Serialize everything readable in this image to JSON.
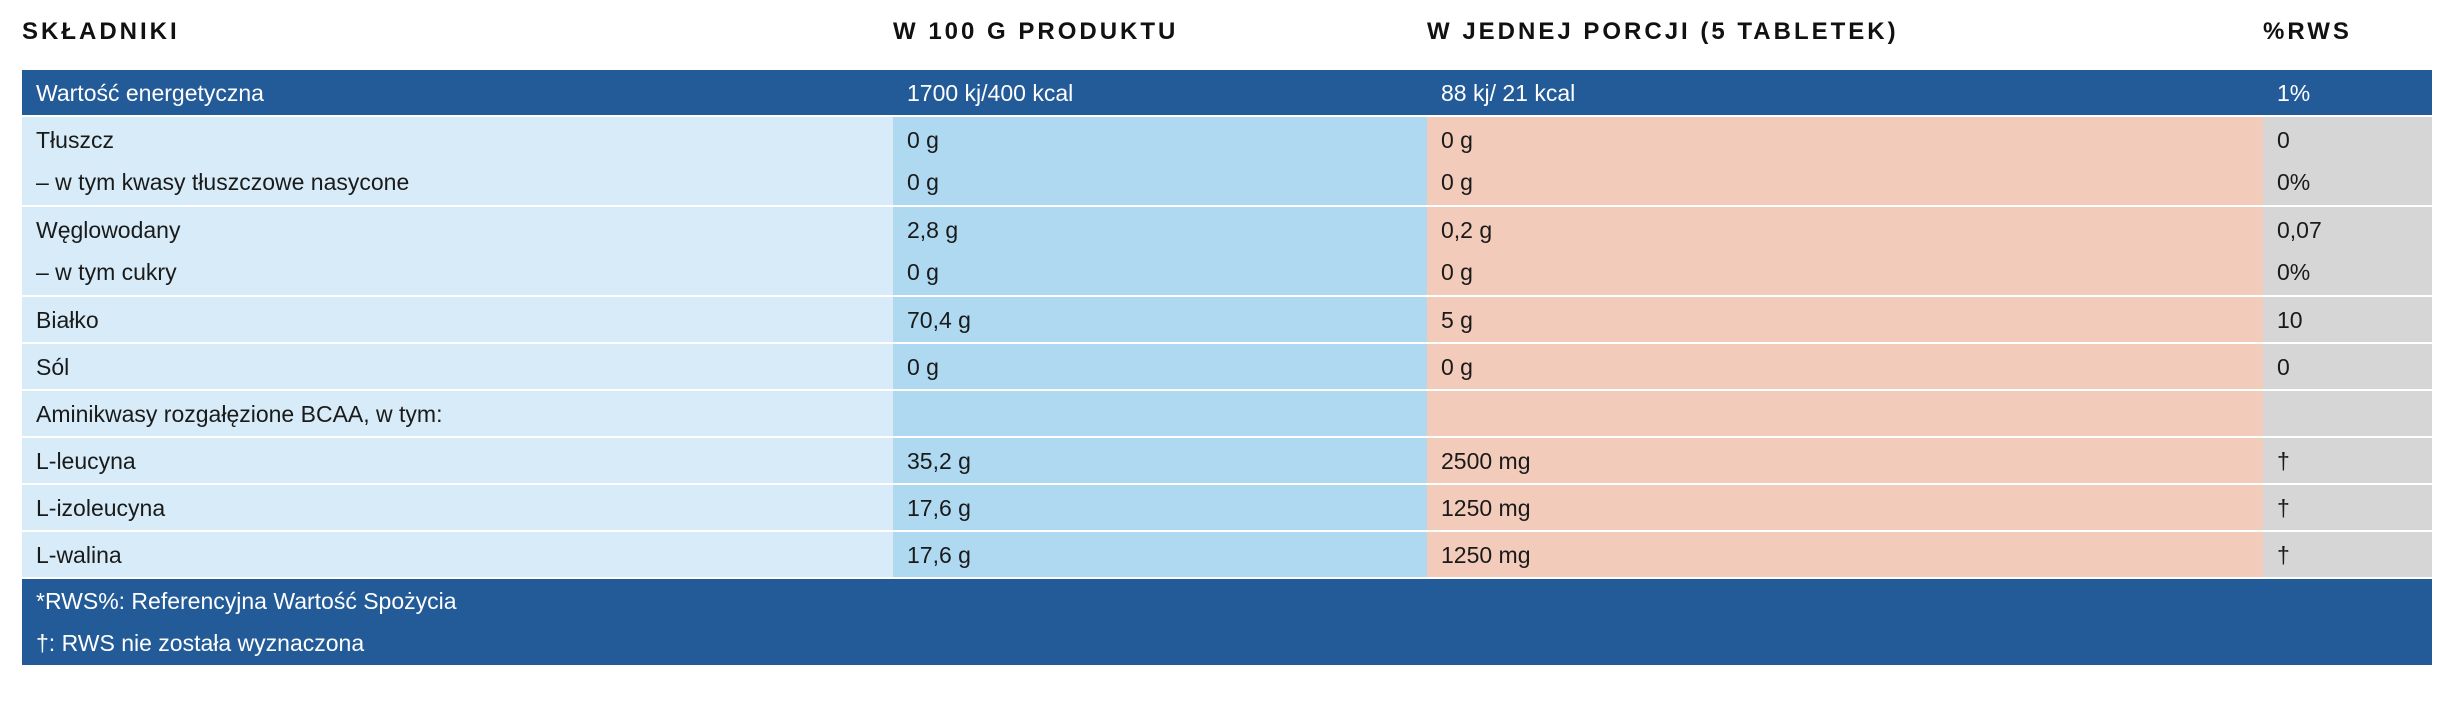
{
  "headers": {
    "ingredients": "SKŁADNIKI",
    "per100g": "W 100 G PRODUKTU",
    "perServing": "W JEDNEJ PORCJI (5 TABLETEK)",
    "rws": "%RWS"
  },
  "rows": [
    {
      "k": [
        "Wartość energetyczna"
      ],
      "a": [
        "1700 kj/400 kcal"
      ],
      "b": [
        "88 kj/ 21 kcal"
      ],
      "c": [
        "1%"
      ]
    },
    {
      "k": [
        "Tłuszcz",
        "– w tym kwasy tłuszczowe nasycone"
      ],
      "a": [
        "0 g",
        "0 g"
      ],
      "b": [
        "0 g",
        "0 g"
      ],
      "c": [
        "0",
        "0%"
      ]
    },
    {
      "k": [
        "Węglowodany",
        "– w tym cukry"
      ],
      "a": [
        "2,8 g",
        "0 g"
      ],
      "b": [
        "0,2 g",
        "0 g"
      ],
      "c": [
        "0,07",
        "0%"
      ]
    },
    {
      "k": [
        "Białko"
      ],
      "a": [
        "70,4 g"
      ],
      "b": [
        "5 g"
      ],
      "c": [
        "10"
      ]
    },
    {
      "k": [
        "Sól"
      ],
      "a": [
        "0 g"
      ],
      "b": [
        "0 g"
      ],
      "c": [
        "0"
      ]
    },
    {
      "k": [
        "Aminikwasy rozgałęzione BCAA, w tym:"
      ],
      "a": [
        ""
      ],
      "b": [
        ""
      ],
      "c": [
        ""
      ]
    },
    {
      "k": [
        "L-leucyna"
      ],
      "a": [
        "35,2 g"
      ],
      "b": [
        "2500 mg"
      ],
      "c": [
        "†"
      ]
    },
    {
      "k": [
        "L-izoleucyna"
      ],
      "a": [
        "17,6 g"
      ],
      "b": [
        "1250 mg"
      ],
      "c": [
        "†"
      ]
    },
    {
      "k": [
        "L-walina"
      ],
      "a": [
        "17,6 g"
      ],
      "b": [
        "1250 mg"
      ],
      "c": [
        "†"
      ]
    }
  ],
  "footnotes": [
    "*RWS%: Referencyjna Wartość Spożycia",
    "†: RWS nie została wyznaczona"
  ],
  "colors": {
    "header_blue": "#235b99",
    "ingredient_col": "#d7ecf8",
    "per100g_col": "#aed9f1",
    "serving_col": "#f2cbbb",
    "rws_col": "#d6d6d6"
  }
}
